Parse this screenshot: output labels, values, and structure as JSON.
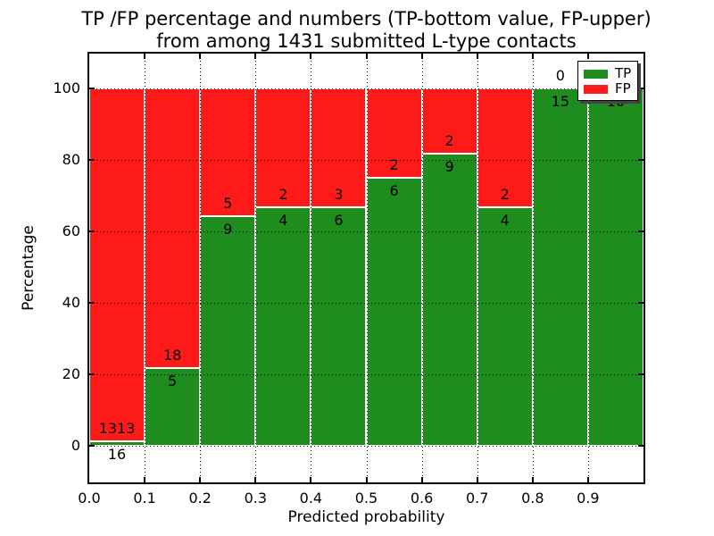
{
  "title": {
    "line1": "TP /FP percentage and numbers (TP-bottom value, FP-upper)",
    "line2": "from among 1431 submitted L-type contacts"
  },
  "x_axis": {
    "label": "Predicted probability",
    "ticks": [
      "0.0",
      "0.1",
      "0.2",
      "0.3",
      "0.4",
      "0.5",
      "0.6",
      "0.7",
      "0.8",
      "0.9"
    ]
  },
  "y_axis": {
    "label": "Percentage",
    "ticks": [
      "0",
      "20",
      "40",
      "60",
      "80",
      "100"
    ]
  },
  "legend": {
    "items": [
      {
        "label": "TP",
        "color": "#1e8c1e"
      },
      {
        "label": "FP",
        "color": "#ff1a1a"
      }
    ],
    "position": "upper right"
  },
  "colors": {
    "tp": "#1e8c1e",
    "fp": "#ff1a1a",
    "grid": "#000000",
    "background": "#ffffff"
  },
  "chart_data": {
    "type": "bar",
    "stacked": true,
    "normalized": "each bin scaled to 100%, TP on bottom, FP on top",
    "title": "TP /FP percentage and numbers (TP-bottom value, FP-upper) from among 1431 submitted L-type contacts",
    "xlabel": "Predicted probability",
    "ylabel": "Percentage",
    "total_contacts": 1431,
    "xlim": [
      0.0,
      1.0
    ],
    "ylim": [
      -10.25,
      110
    ],
    "grid": "dotted, both axes, drawn over bars",
    "bins": [
      {
        "x_range": [
          0.0,
          0.1
        ],
        "tp": 16,
        "fp": 1313,
        "tp_percent": 1.2
      },
      {
        "x_range": [
          0.1,
          0.2
        ],
        "tp": 5,
        "fp": 18,
        "tp_percent": 21.7
      },
      {
        "x_range": [
          0.2,
          0.3
        ],
        "tp": 9,
        "fp": 5,
        "tp_percent": 64.3
      },
      {
        "x_range": [
          0.3,
          0.4
        ],
        "tp": 4,
        "fp": 2,
        "tp_percent": 66.7
      },
      {
        "x_range": [
          0.4,
          0.5
        ],
        "tp": 6,
        "fp": 3,
        "tp_percent": 66.7
      },
      {
        "x_range": [
          0.5,
          0.6
        ],
        "tp": 6,
        "fp": 2,
        "tp_percent": 75.0
      },
      {
        "x_range": [
          0.6,
          0.7
        ],
        "tp": 9,
        "fp": 2,
        "tp_percent": 81.8
      },
      {
        "x_range": [
          0.7,
          0.8
        ],
        "tp": 4,
        "fp": 2,
        "tp_percent": 66.7
      },
      {
        "x_range": [
          0.8,
          0.9
        ],
        "tp": 15,
        "fp": 0,
        "tp_percent": 100.0
      },
      {
        "x_range": [
          0.9,
          1.0
        ],
        "tp": 10,
        "fp": 0,
        "tp_percent": 100.0
      }
    ]
  }
}
